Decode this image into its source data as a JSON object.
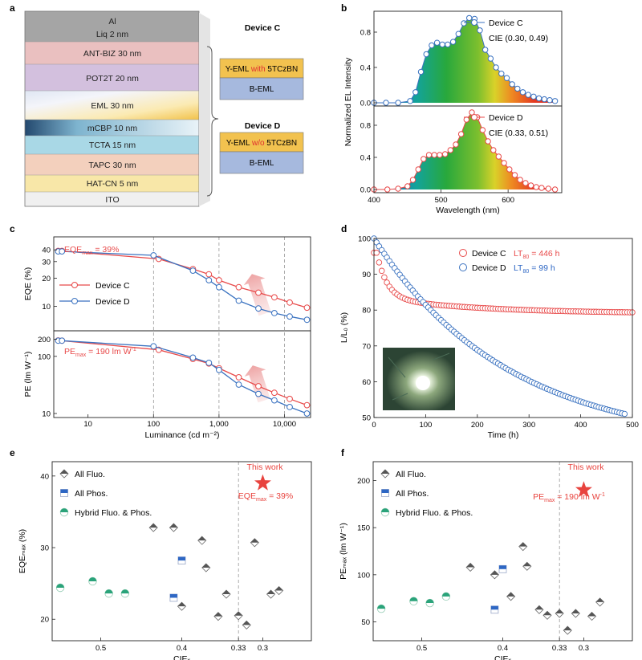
{
  "panels": {
    "a": {
      "letter": "a",
      "layers": [
        "Al",
        "Liq 2 nm",
        "ANT-BIZ 30 nm",
        "POT2T 20 nm",
        "EML 30 nm",
        "mCBP 10 nm",
        "TCTA 15 nm",
        "TAPC 30 nm",
        "HAT-CN 5 nm",
        "ITO"
      ],
      "device_c": {
        "title": "Device C",
        "yeml_pre": "Y-EML ",
        "yeml_mid": "with",
        "yeml_post": " 5TCzBN",
        "beml": "B-EML"
      },
      "device_d": {
        "title": "Device D",
        "yeml_pre": "Y-EML ",
        "yeml_mid": "w/o",
        "yeml_post": " 5TCzBN",
        "beml": "B-EML"
      }
    },
    "b": {
      "letter": "b"
    },
    "c": {
      "letter": "c",
      "eqe_annot_main": "EQE",
      "eqe_annot_sub": "max",
      "eqe_annot_val": " = 39%",
      "pe_annot_main": "PE",
      "pe_annot_sub": "max",
      "pe_annot_val": " = 190 lm W",
      "pe_annot_sup": "-1"
    },
    "d": {
      "letter": "d",
      "c_lt_main": "LT",
      "c_lt_sub": "80",
      "c_lt_val": " = 446 h",
      "d_lt_main": "LT",
      "d_lt_sub": "80",
      "d_lt_val": " = 99 h"
    },
    "e": {
      "letter": "e",
      "this_work": "This work",
      "annot_main": "EQE",
      "annot_sub": "max",
      "annot_val": " = 39%"
    },
    "f": {
      "letter": "f",
      "this_work": "This work",
      "annot_main": "PE",
      "annot_sub": "max",
      "annot_val": " = 190 lm W",
      "annot_sup": "-1"
    }
  },
  "colors": {
    "device_c": "#e84a4a",
    "device_d": "#3a72c0",
    "star": "#e8433e",
    "fluo": "#555555",
    "phos": "#2e67c4",
    "hybrid": "#2aa37a"
  },
  "chart_data": [
    {
      "panel": "b",
      "type": "area",
      "xlabel": "Wavelength (nm)",
      "ylabel": "Normalized EL Intensity",
      "xlim": [
        400,
        680
      ],
      "xticks": [
        "400",
        "500",
        "600"
      ],
      "subplots": [
        {
          "name": "Device C",
          "cie": "CIE (0.30, 0.49)",
          "ylim": [
            0,
            1
          ],
          "yticks": [
            "0.0",
            "0.4",
            "0.8"
          ],
          "x": [
            400,
            418,
            436,
            454,
            462,
            470,
            478,
            486,
            494,
            502,
            510,
            518,
            526,
            534,
            542,
            550,
            558,
            566,
            574,
            582,
            590,
            598,
            606,
            614,
            622,
            630,
            638,
            646,
            654,
            662,
            670
          ],
          "y": [
            0.0,
            0.0,
            0.0,
            0.02,
            0.12,
            0.35,
            0.55,
            0.65,
            0.68,
            0.66,
            0.66,
            0.69,
            0.78,
            0.9,
            0.96,
            0.95,
            0.82,
            0.6,
            0.5,
            0.4,
            0.33,
            0.28,
            0.21,
            0.16,
            0.12,
            0.09,
            0.07,
            0.05,
            0.04,
            0.03,
            0.02
          ]
        },
        {
          "name": "Device D",
          "cie": "CIE (0.33, 0.51)",
          "ylim": [
            0,
            1
          ],
          "yticks": [
            "0.0",
            "0.4",
            "0.8"
          ],
          "x": [
            400,
            420,
            436,
            450,
            458,
            466,
            474,
            482,
            490,
            498,
            506,
            514,
            522,
            530,
            538,
            546,
            554,
            562,
            570,
            578,
            586,
            594,
            602,
            610,
            618,
            626,
            634,
            642,
            650,
            660,
            670
          ],
          "y": [
            0.0,
            0.0,
            0.01,
            0.04,
            0.12,
            0.25,
            0.38,
            0.43,
            0.43,
            0.43,
            0.44,
            0.49,
            0.56,
            0.69,
            0.87,
            0.96,
            0.9,
            0.74,
            0.6,
            0.49,
            0.41,
            0.33,
            0.25,
            0.18,
            0.12,
            0.08,
            0.05,
            0.03,
            0.02,
            0.01,
            0.0
          ]
        }
      ]
    },
    {
      "panel": "c",
      "type": "line",
      "xlabel": "Luminance (cd m⁻²)",
      "xscale": "log",
      "xlim": [
        3,
        25000
      ],
      "xticks": [
        "10",
        "100",
        "1,000",
        "10,000"
      ],
      "subplots": [
        {
          "ylabel": "EQE (%)",
          "yscale": "log",
          "ylim": [
            5.5,
            55
          ],
          "yticks": [
            "10",
            "20",
            "30",
            "40"
          ],
          "series": [
            {
              "name": "Device C",
              "x": [
                3.5,
                4,
                120,
                400,
                700,
                1000,
                2000,
                4000,
                7000,
                12000,
                22000
              ],
              "y": [
                39,
                39,
                32,
                25,
                22,
                19,
                16,
                14,
                12.5,
                11,
                9.7
              ]
            },
            {
              "name": "Device D",
              "x": [
                3.5,
                4,
                100,
                400,
                700,
                1000,
                2000,
                4000,
                7000,
                12000,
                22000
              ],
              "y": [
                38.5,
                38.5,
                35,
                24,
                19,
                16,
                11.5,
                9.5,
                8.5,
                7.8,
                7.2
              ]
            }
          ]
        },
        {
          "ylabel": "PE (lm W⁻¹)",
          "yscale": "log",
          "ylim": [
            8.5,
            280
          ],
          "yticks": [
            "10",
            "100",
            "200"
          ],
          "series": [
            {
              "name": "Device C",
              "x": [
                3.5,
                4,
                120,
                400,
                700,
                1000,
                2000,
                4000,
                7000,
                12000,
                22000
              ],
              "y": [
                190,
                188,
                130,
                90,
                75,
                62,
                43,
                30,
                23,
                18,
                14
              ]
            },
            {
              "name": "Device D",
              "x": [
                3.5,
                4,
                100,
                400,
                700,
                1000,
                2000,
                4000,
                7000,
                12000,
                22000
              ],
              "y": [
                188,
                188,
                150,
                95,
                77,
                58,
                32,
                22,
                17,
                13,
                10
              ]
            }
          ]
        }
      ]
    },
    {
      "panel": "d",
      "type": "scatter",
      "xlabel": "Time (h)",
      "ylabel": "L/L₀ (%)",
      "xlim": [
        0,
        500
      ],
      "ylim": [
        50,
        100
      ],
      "xticks": [
        "0",
        "100",
        "200",
        "300",
        "400",
        "500"
      ],
      "yticks": [
        "50",
        "60",
        "70",
        "80",
        "90",
        "100"
      ],
      "series": [
        {
          "name": "Device C",
          "model": "fit_c"
        },
        {
          "name": "Device D",
          "model": "fit_d"
        }
      ]
    },
    {
      "panel": "e",
      "type": "scatter",
      "xlabel": "CIEₓ",
      "ylabel": "EQEₘₐₓ (%)",
      "xlim": [
        0.56,
        0.24
      ],
      "ylim": [
        17,
        42
      ],
      "xticks": [
        "0.5",
        "0.4",
        "0.33",
        "0.3"
      ],
      "yticks": [
        "20",
        "30",
        "40"
      ],
      "ref_line_x": 0.33,
      "legend": [
        "All Fluo.",
        "All Phos.",
        "Hybrid Fluo. & Phos."
      ],
      "series": [
        {
          "name": "All Fluo.",
          "x": [
            0.435,
            0.41,
            0.4,
            0.375,
            0.37,
            0.355,
            0.345,
            0.33,
            0.32,
            0.31,
            0.29,
            0.28
          ],
          "y": [
            32.8,
            32.8,
            21.8,
            31.0,
            27.2,
            20.4,
            23.5,
            20.5,
            19.2,
            30.7,
            23.5,
            24.0
          ]
        },
        {
          "name": "All Phos.",
          "x": [
            0.41,
            0.4
          ],
          "y": [
            23.0,
            28.2
          ]
        },
        {
          "name": "Hybrid Fluo. & Phos.",
          "x": [
            0.55,
            0.51,
            0.49,
            0.47
          ],
          "y": [
            24.4,
            25.3,
            23.6,
            23.6
          ]
        },
        {
          "name": "This work",
          "x": [
            0.3
          ],
          "y": [
            39.0
          ]
        }
      ]
    },
    {
      "panel": "f",
      "type": "scatter",
      "xlabel": "CIEₓ",
      "ylabel": "PEₘₐₓ (lm W⁻¹)",
      "xlim": [
        0.56,
        0.24
      ],
      "ylim": [
        30,
        220
      ],
      "xticks": [
        "0.5",
        "0.4",
        "0.33",
        "0.3"
      ],
      "yticks": [
        "50",
        "100",
        "150",
        "200"
      ],
      "ref_line_x": 0.33,
      "legend": [
        "All Fluo.",
        "All Phos.",
        "Hybrid Fluo. & Phos."
      ],
      "series": [
        {
          "name": "All Fluo.",
          "x": [
            0.44,
            0.41,
            0.39,
            0.375,
            0.37,
            0.355,
            0.345,
            0.33,
            0.32,
            0.31,
            0.29,
            0.28
          ],
          "y": [
            108,
            100,
            77,
            130,
            109,
            63,
            57,
            59,
            41,
            59,
            56,
            71
          ]
        },
        {
          "name": "All Phos.",
          "x": [
            0.41,
            0.4
          ],
          "y": [
            63,
            106
          ]
        },
        {
          "name": "Hybrid Fluo. & Phos.",
          "x": [
            0.55,
            0.51,
            0.49,
            0.47
          ],
          "y": [
            64,
            72,
            70,
            77
          ]
        },
        {
          "name": "This work",
          "x": [
            0.3
          ],
          "y": [
            190
          ]
        }
      ]
    }
  ]
}
